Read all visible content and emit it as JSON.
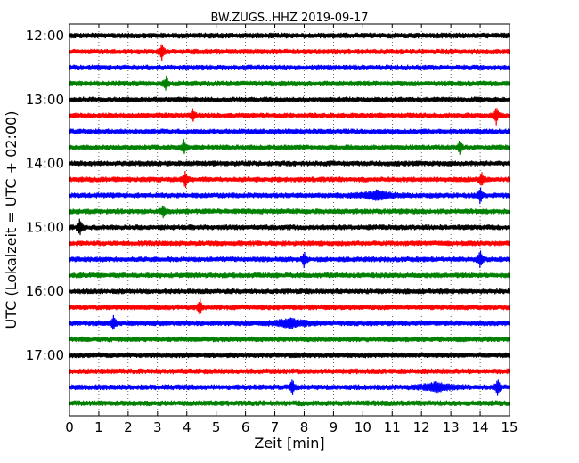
{
  "chart_data": {
    "type": "line",
    "title": "BW.ZUGS..HHZ 2019-09-17",
    "xlabel": "Zeit  [min]",
    "ylabel": "UTC (Lokalzeit = UTC + 02:00)",
    "xlim": [
      0,
      15
    ],
    "x_ticks": [
      "0",
      "1",
      "2",
      "3",
      "4",
      "5",
      "6",
      "7",
      "8",
      "9",
      "10",
      "11",
      "12",
      "13",
      "14",
      "15"
    ],
    "y_tick_labels": [
      "12:00",
      "13:00",
      "14:00",
      "15:00",
      "16:00",
      "17:00"
    ],
    "y_tick_rows": [
      0,
      4,
      8,
      12,
      16,
      20
    ],
    "trace_start_times": [
      "12:00",
      "12:15",
      "12:30",
      "12:45",
      "13:00",
      "13:15",
      "13:30",
      "13:45",
      "14:00",
      "14:15",
      "14:30",
      "14:45",
      "15:00",
      "15:15",
      "15:30",
      "15:45",
      "16:00",
      "16:15",
      "16:30",
      "16:45",
      "17:00",
      "17:15",
      "17:30",
      "17:45"
    ],
    "trace_colors": [
      "#000000",
      "#ff0000",
      "#0000ff",
      "#008000"
    ],
    "events": [
      {
        "trace": 1,
        "minute": 3.15,
        "amp": 1.6
      },
      {
        "trace": 3,
        "minute": 3.3,
        "amp": 1.4
      },
      {
        "trace": 5,
        "minute": 4.2,
        "amp": 1.3
      },
      {
        "trace": 5,
        "minute": 14.55,
        "amp": 1.8
      },
      {
        "trace": 7,
        "minute": 3.9,
        "amp": 1.5
      },
      {
        "trace": 7,
        "minute": 13.3,
        "amp": 1.4
      },
      {
        "trace": 9,
        "minute": 3.95,
        "amp": 1.8
      },
      {
        "trace": 9,
        "minute": 14.05,
        "amp": 1.4
      },
      {
        "trace": 10,
        "minute": 14.0,
        "amp": 1.6
      },
      {
        "trace": 10,
        "minute": 10.5,
        "amp": 0.8
      },
      {
        "trace": 11,
        "minute": 3.2,
        "amp": 1.3
      },
      {
        "trace": 12,
        "minute": 0.35,
        "amp": 1.8
      },
      {
        "trace": 14,
        "minute": 8.0,
        "amp": 1.7
      },
      {
        "trace": 14,
        "minute": 14.0,
        "amp": 1.8
      },
      {
        "trace": 17,
        "minute": 4.45,
        "amp": 1.5
      },
      {
        "trace": 18,
        "minute": 1.5,
        "amp": 1.5
      },
      {
        "trace": 18,
        "minute": 7.5,
        "amp": 0.8
      },
      {
        "trace": 22,
        "minute": 7.6,
        "amp": 1.6
      },
      {
        "trace": 22,
        "minute": 14.6,
        "amp": 1.8
      },
      {
        "trace": 22,
        "minute": 12.5,
        "amp": 0.8
      }
    ],
    "grid": true
  }
}
